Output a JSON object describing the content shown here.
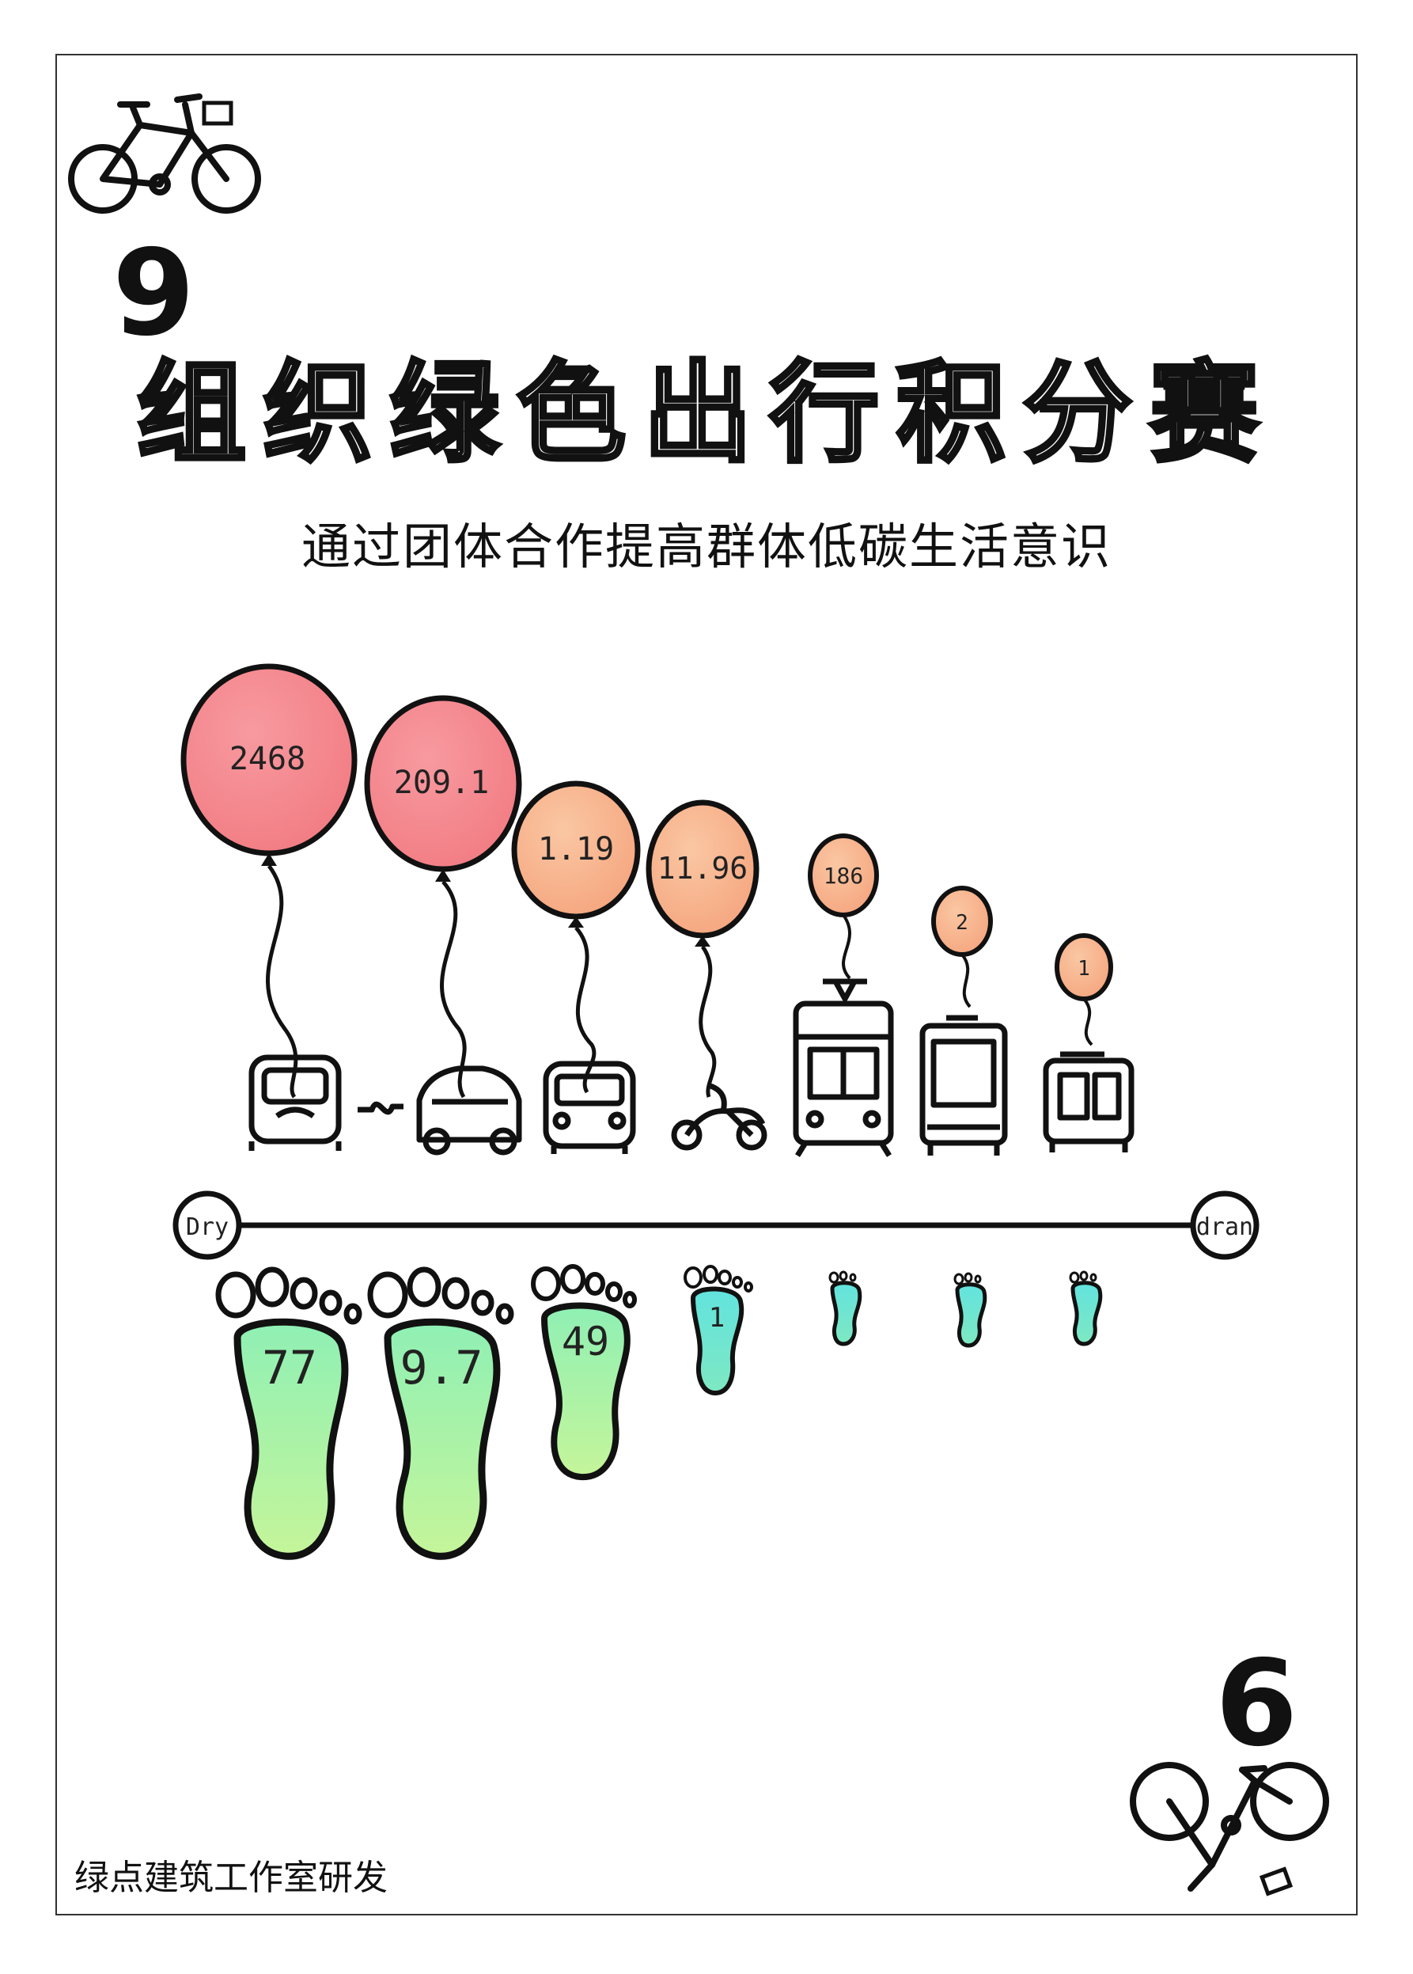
{
  "card": {
    "number_top": "9",
    "number_bottom": "6",
    "title": "组织绿色出行积分赛",
    "subtitle": "通过团体合作提高群体低碳生活意识",
    "footer": "绿点建筑工作室研发"
  },
  "icons": {
    "top": "bicycle-icon",
    "bottom": "bicycle-icon"
  },
  "illustration": {
    "timeline_start_label": "Dry",
    "timeline_end_label": "dran",
    "balloon_labels": [
      "2468",
      "209.1",
      "1.19",
      "11.96",
      "186",
      "2",
      "1"
    ],
    "footprint_labels": [
      "77",
      "9.7",
      "49",
      "1"
    ],
    "colors": {
      "balloon_large": "#f48a8f",
      "balloon_small": "#f7ba94",
      "footprint_large": "#aef3a2",
      "footprint_small": "#6fe6dc"
    }
  }
}
